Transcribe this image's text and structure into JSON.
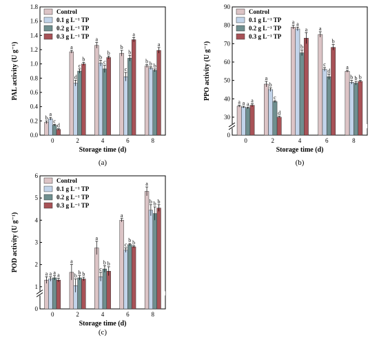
{
  "legend_colors": [
    "#dcc4c6",
    "#c2d4ea",
    "#6f8f8f",
    "#a85257"
  ],
  "chart_data": [
    {
      "type": "bar",
      "panel_label": "(a)",
      "xlabel": "Storage time (d)",
      "ylabel": "PAL activity (U g⁻¹)",
      "categories": [
        "0",
        "2",
        "4",
        "6",
        "8"
      ],
      "ylim": [
        0,
        1.8
      ],
      "yticks": [
        "0.0",
        "0.2",
        "0.4",
        "0.6",
        "0.8",
        "1.0",
        "1.2",
        "1.4",
        "1.6",
        "1.8"
      ],
      "axis_break": false,
      "legend": [
        "Control",
        "0.1 g L⁻¹ TP",
        "0.2 g L⁻¹ TP",
        "0.3 g L⁻¹ TP"
      ],
      "legend_position": "top-left",
      "series": [
        {
          "name": "Control",
          "values": [
            0.18,
            1.17,
            1.26,
            1.15,
            0.97
          ],
          "errors": [
            0.02,
            0.02,
            0.04,
            0.04,
            0.02
          ],
          "labels": [
            "b",
            "a",
            "a",
            "b",
            "b"
          ]
        },
        {
          "name": "0.1 g L⁻¹ TP",
          "values": [
            0.23,
            0.73,
            1.01,
            0.82,
            0.94
          ],
          "errors": [
            0.02,
            0.04,
            0.04,
            0.06,
            0.02
          ],
          "labels": [
            "a",
            "d",
            "b",
            "c",
            "b"
          ]
        },
        {
          "name": "0.2 g L⁻¹ TP",
          "values": [
            0.14,
            0.9,
            0.93,
            1.08,
            0.91
          ],
          "errors": [
            0.01,
            0.03,
            0.05,
            0.04,
            0.02
          ],
          "labels": [
            "c",
            "c",
            "c",
            "b",
            "b"
          ]
        },
        {
          "name": "0.3 g L⁻¹ TP",
          "values": [
            0.08,
            1.0,
            1.09,
            1.34,
            1.19
          ],
          "errors": [
            0.01,
            0.02,
            0.02,
            0.03,
            0.04
          ],
          "labels": [
            "d",
            "b",
            "b",
            "a",
            "a"
          ]
        }
      ]
    },
    {
      "type": "bar",
      "panel_label": "(b)",
      "xlabel": "Storage time (d)",
      "ylabel": "PPO activity (U g⁻¹)",
      "categories": [
        "0",
        "2",
        "4",
        "6",
        "8"
      ],
      "ylim": [
        0,
        90
      ],
      "yticks": [
        "0",
        "30",
        "40",
        "50",
        "60",
        "70",
        "80",
        "90"
      ],
      "axis_break": true,
      "legend": [
        "Control",
        "0.1 g L⁻¹ TP",
        "0.2 g L⁻¹ TP",
        "0.3 g L⁻¹ TP"
      ],
      "legend_position": "top-left",
      "series": [
        {
          "name": "Control",
          "values": [
            36,
            48,
            79,
            75,
            55
          ],
          "errors": [
            0.5,
            1.5,
            1.0,
            1.5,
            0.5
          ],
          "labels": [
            "a",
            "a",
            "a",
            "a",
            "a"
          ]
        },
        {
          "name": "0.1 g L⁻¹ TP",
          "values": [
            35.5,
            45,
            78,
            56,
            49
          ],
          "errors": [
            0.5,
            1.0,
            1.0,
            1.0,
            1.0
          ],
          "labels": [
            "a",
            "b",
            "a",
            "c",
            "b"
          ]
        },
        {
          "name": "0.2 g L⁻¹ TP",
          "values": [
            35,
            38.5,
            65,
            52,
            48.5
          ],
          "errors": [
            0.5,
            0.5,
            1.5,
            1.5,
            1.0
          ],
          "labels": [
            "a",
            "c",
            "b",
            "d",
            "b"
          ]
        },
        {
          "name": "0.3 g L⁻¹ TP",
          "values": [
            36.5,
            30,
            73,
            68,
            49.5
          ],
          "errors": [
            0.8,
            0.5,
            3.0,
            1.5,
            0.5
          ],
          "labels": [
            "a",
            "d",
            "a",
            "b",
            "b"
          ]
        }
      ]
    },
    {
      "type": "bar",
      "panel_label": "(c)",
      "xlabel": "Storage time (d)",
      "ylabel": "POD activity (U g⁻¹)",
      "categories": [
        "0",
        "2",
        "4",
        "6",
        "8"
      ],
      "ylim": [
        0,
        6
      ],
      "yticks": [
        "0",
        "1",
        "2",
        "3",
        "4",
        "5",
        "6"
      ],
      "axis_break": true,
      "legend": [
        "Control",
        "0.1 g L⁻¹ TP",
        "0.2 g L⁻¹ TP",
        "0.3 g L⁻¹ TP"
      ],
      "legend_position": "top-left",
      "series": [
        {
          "name": "Control",
          "values": [
            1.3,
            1.65,
            2.75,
            4.0,
            5.3
          ],
          "errors": [
            0.15,
            0.35,
            0.3,
            0.08,
            0.2
          ],
          "labels": [
            "a",
            "a",
            "a",
            "a",
            "a"
          ]
        },
        {
          "name": "0.1 g L⁻¹ TP",
          "values": [
            1.35,
            1.05,
            1.45,
            2.65,
            4.45
          ],
          "errors": [
            0.1,
            0.3,
            0.2,
            0.1,
            0.25
          ],
          "labels": [
            "a",
            "b",
            "c",
            "c",
            "b"
          ]
        },
        {
          "name": "0.2 g L⁻¹ TP",
          "values": [
            1.4,
            1.4,
            1.8,
            2.9,
            4.3
          ],
          "errors": [
            0.1,
            0.1,
            0.15,
            0.05,
            0.3
          ],
          "labels": [
            "a",
            "b",
            "b",
            "b",
            "b"
          ]
        },
        {
          "name": "0.3 g L⁻¹ TP",
          "values": [
            1.3,
            1.35,
            1.7,
            2.8,
            4.55
          ],
          "errors": [
            0.08,
            0.08,
            0.2,
            0.05,
            0.15
          ],
          "labels": [
            "a",
            "b",
            "b",
            "b",
            "b"
          ]
        }
      ]
    }
  ]
}
